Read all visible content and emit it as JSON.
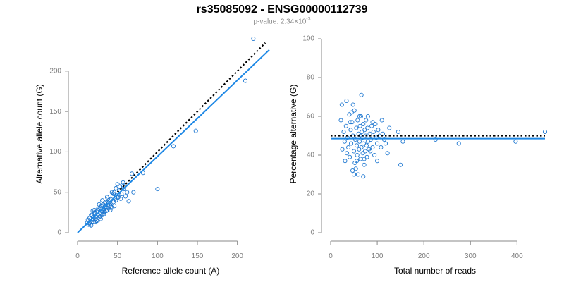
{
  "title": "rs35085092 - ENSG00000112739",
  "subtitle": {
    "prefix": "p-value: 2.34×10",
    "exponent": "-3"
  },
  "colors": {
    "points": "#1f78d1",
    "fit": "#1e88e5",
    "reference": "#000000",
    "axis": "#8a8a8a"
  },
  "chart_data": [
    {
      "type": "scatter",
      "xlabel": "Reference allele count (A)",
      "ylabel": "Alternative allele count (G)",
      "xlim": [
        0,
        240
      ],
      "ylim": [
        0,
        240
      ],
      "xticks": [
        0,
        50,
        100,
        150,
        200
      ],
      "yticks": [
        0,
        50,
        100,
        150,
        200
      ],
      "fit_line": {
        "slope": 0.943,
        "intercept": 0,
        "x_range": [
          0,
          240
        ]
      },
      "reference_line": {
        "slope": 1,
        "intercept": 0,
        "x_range": [
          50,
          235
        ]
      },
      "points": [
        [
          12,
          12
        ],
        [
          14,
          10
        ],
        [
          15,
          18
        ],
        [
          16,
          14
        ],
        [
          17,
          22
        ],
        [
          18,
          13
        ],
        [
          19,
          16
        ],
        [
          20,
          19
        ],
        [
          21,
          25
        ],
        [
          22,
          17
        ],
        [
          23,
          20
        ],
        [
          24,
          15
        ],
        [
          25,
          28
        ],
        [
          26,
          22
        ],
        [
          27,
          19
        ],
        [
          28,
          31
        ],
        [
          29,
          25
        ],
        [
          30,
          27
        ],
        [
          31,
          22
        ],
        [
          32,
          35
        ],
        [
          33,
          29
        ],
        [
          34,
          26
        ],
        [
          35,
          38
        ],
        [
          36,
          31
        ],
        [
          37,
          28
        ],
        [
          38,
          34
        ],
        [
          39,
          30
        ],
        [
          40,
          41
        ],
        [
          41,
          36
        ],
        [
          42,
          32
        ],
        [
          44,
          45
        ],
        [
          45,
          38
        ],
        [
          46,
          50
        ],
        [
          47,
          42
        ],
        [
          48,
          55
        ],
        [
          49,
          46
        ],
        [
          50,
          60
        ],
        [
          52,
          52
        ],
        [
          53,
          57
        ],
        [
          55,
          48
        ],
        [
          57,
          62
        ],
        [
          58,
          54
        ],
        [
          60,
          45
        ],
        [
          62,
          50
        ],
        [
          64,
          39
        ],
        [
          68,
          73
        ],
        [
          70,
          50
        ],
        [
          82,
          74
        ],
        [
          100,
          54
        ],
        [
          120,
          107
        ],
        [
          148,
          126
        ],
        [
          210,
          188
        ],
        [
          220,
          240
        ],
        [
          15,
          12
        ],
        [
          18,
          21
        ],
        [
          20,
          13
        ],
        [
          22,
          24
        ],
        [
          24,
          26
        ],
        [
          26,
          30
        ],
        [
          28,
          20
        ],
        [
          30,
          33
        ],
        [
          32,
          24
        ],
        [
          34,
          37
        ],
        [
          36,
          27
        ],
        [
          38,
          42
        ],
        [
          40,
          34
        ],
        [
          16,
          10
        ],
        [
          19,
          27
        ],
        [
          25,
          14
        ],
        [
          27,
          35
        ],
        [
          29,
          17
        ],
        [
          31,
          40
        ],
        [
          33,
          23
        ],
        [
          35,
          32
        ],
        [
          37,
          44
        ],
        [
          39,
          37
        ],
        [
          43,
          31
        ],
        [
          45,
          48
        ],
        [
          48,
          40
        ],
        [
          51,
          44
        ],
        [
          54,
          42
        ],
        [
          56,
          59
        ],
        [
          13,
          16
        ],
        [
          17,
          9
        ],
        [
          21,
          28
        ],
        [
          23,
          13
        ],
        [
          43,
          50
        ],
        [
          41,
          28
        ],
        [
          46,
          33
        ],
        [
          52,
          47
        ]
      ]
    },
    {
      "type": "scatter",
      "xlabel": "Total number of reads",
      "ylabel": "Percentage alternative (G)",
      "xlim": [
        0,
        460
      ],
      "ylim": [
        0,
        100
      ],
      "xticks": [
        0,
        100,
        200,
        300,
        400
      ],
      "yticks": [
        0,
        20,
        40,
        60,
        80,
        100
      ],
      "fit_line": {
        "y": 48.5,
        "x_range": [
          0,
          460
        ]
      },
      "reference_line": {
        "y": 50,
        "x_range": [
          0,
          460
        ]
      },
      "points": [
        [
          22,
          58
        ],
        [
          25,
          43
        ],
        [
          28,
          52
        ],
        [
          30,
          47
        ],
        [
          31,
          37
        ],
        [
          33,
          55
        ],
        [
          35,
          41
        ],
        [
          36,
          49
        ],
        [
          38,
          44
        ],
        [
          40,
          61
        ],
        [
          41,
          39
        ],
        [
          43,
          53
        ],
        [
          44,
          46
        ],
        [
          46,
          57
        ],
        [
          47,
          32
        ],
        [
          48,
          50
        ],
        [
          50,
          42
        ],
        [
          51,
          63
        ],
        [
          52,
          36
        ],
        [
          53,
          48
        ],
        [
          55,
          54
        ],
        [
          56,
          45
        ],
        [
          57,
          40
        ],
        [
          58,
          58
        ],
        [
          59,
          30
        ],
        [
          60,
          51
        ],
        [
          61,
          43
        ],
        [
          62,
          47
        ],
        [
          63,
          55
        ],
        [
          64,
          38
        ],
        [
          65,
          60
        ],
        [
          66,
          44
        ],
        [
          67,
          52
        ],
        [
          68,
          49
        ],
        [
          69,
          41
        ],
        [
          70,
          56
        ],
        [
          71,
          46
        ],
        [
          72,
          35
        ],
        [
          73,
          53
        ],
        [
          74,
          42
        ],
        [
          75,
          50
        ],
        [
          76,
          58
        ],
        [
          77,
          45
        ],
        [
          78,
          39
        ],
        [
          79,
          54
        ],
        [
          80,
          47
        ],
        [
          82,
          43
        ],
        [
          84,
          51
        ],
        [
          86,
          48
        ],
        [
          88,
          55
        ],
        [
          90,
          44
        ],
        [
          92,
          52
        ],
        [
          94,
          40
        ],
        [
          96,
          56
        ],
        [
          98,
          49
        ],
        [
          100,
          46
        ],
        [
          102,
          53
        ],
        [
          105,
          50
        ],
        [
          108,
          44
        ],
        [
          112,
          51
        ],
        [
          115,
          48
        ],
        [
          118,
          46
        ],
        [
          122,
          41
        ],
        [
          126,
          54
        ],
        [
          145,
          52
        ],
        [
          150,
          35
        ],
        [
          155,
          47
        ],
        [
          225,
          48
        ],
        [
          275,
          46
        ],
        [
          397,
          47
        ],
        [
          460,
          52
        ],
        [
          24,
          66
        ],
        [
          34,
          68
        ],
        [
          45,
          62
        ],
        [
          50,
          30
        ],
        [
          54,
          33
        ],
        [
          62,
          60
        ],
        [
          66,
          71
        ],
        [
          70,
          29
        ],
        [
          72,
          38
        ],
        [
          80,
          60
        ],
        [
          85,
          42
        ],
        [
          90,
          57
        ],
        [
          100,
          37
        ],
        [
          110,
          58
        ],
        [
          42,
          57
        ],
        [
          48,
          66
        ],
        [
          56,
          37
        ],
        [
          64,
          50
        ]
      ]
    }
  ]
}
